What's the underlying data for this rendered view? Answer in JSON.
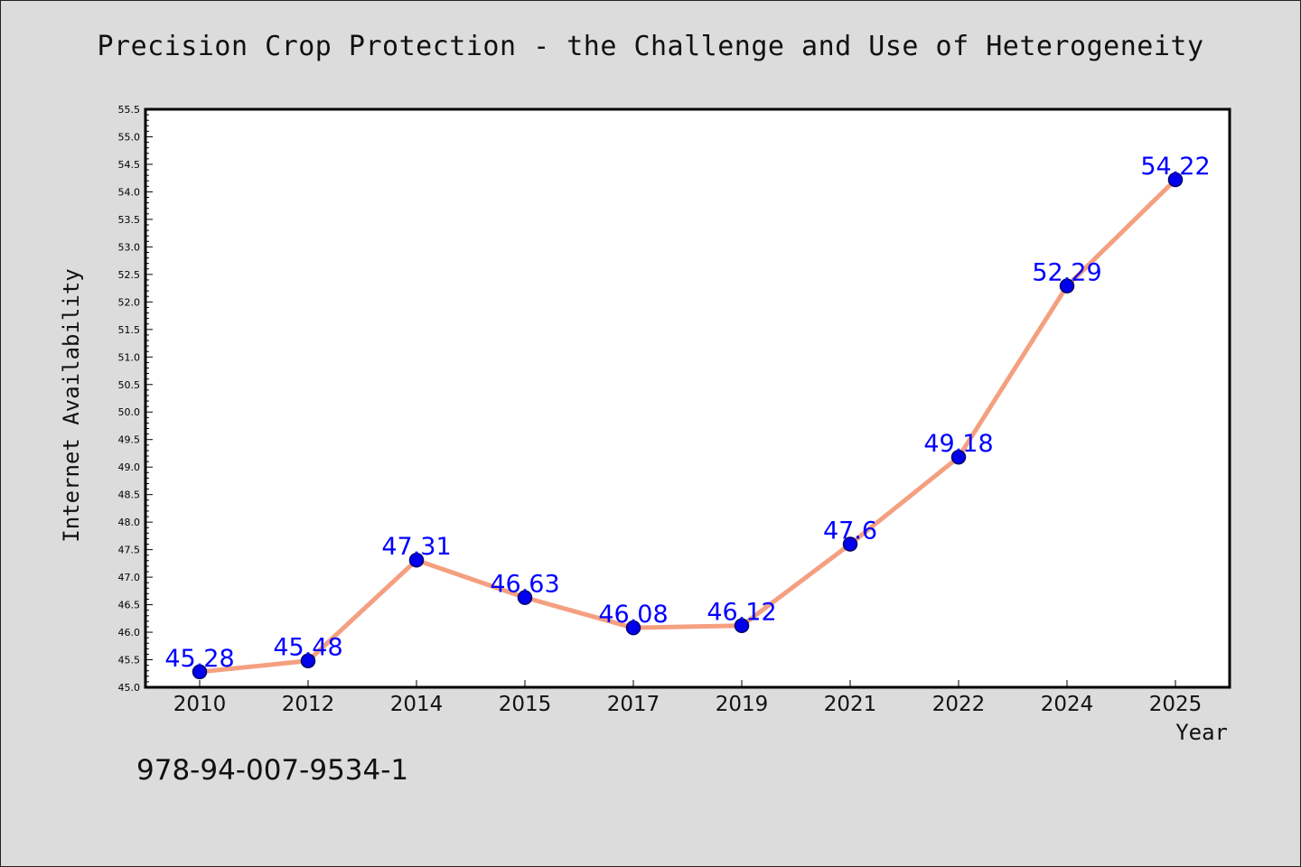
{
  "chart_data": {
    "type": "line",
    "title": "Precision Crop Protection - the Challenge and Use of Heterogeneity",
    "xlabel": "Year",
    "ylabel": "Internet Availability",
    "categories": [
      "2010",
      "2012",
      "2014",
      "2015",
      "2017",
      "2019",
      "2021",
      "2022",
      "2024",
      "2025"
    ],
    "series": [
      {
        "values": [
          45.28,
          45.48,
          47.31,
          46.63,
          46.08,
          46.12,
          47.6,
          49.18,
          52.29,
          54.22
        ]
      }
    ],
    "data_labels": [
      "45.28",
      "45.48",
      "47.31",
      "46.63",
      "46.08",
      "46.12",
      "47.6",
      "49.18",
      "52.29",
      "54.22"
    ],
    "ylim": [
      45.0,
      55.5
    ],
    "yticks": [
      "45.0",
      "45.5",
      "46.0",
      "46.5",
      "47.0",
      "47.5",
      "48.0",
      "48.5",
      "49.0",
      "49.5",
      "50.0",
      "50.5",
      "51.0",
      "51.5",
      "52.0",
      "52.5",
      "53.0",
      "53.5",
      "54.0",
      "54.5",
      "55.0",
      "55.5"
    ],
    "grid": false,
    "colors": {
      "line": "#f4a080",
      "marker": "#0000ee",
      "marker_edge": "#000066",
      "label": "#0000ff",
      "background": "#dcdcdc",
      "plot_background": "#ffffff"
    }
  },
  "footer_text": "978-94-007-9534-1"
}
